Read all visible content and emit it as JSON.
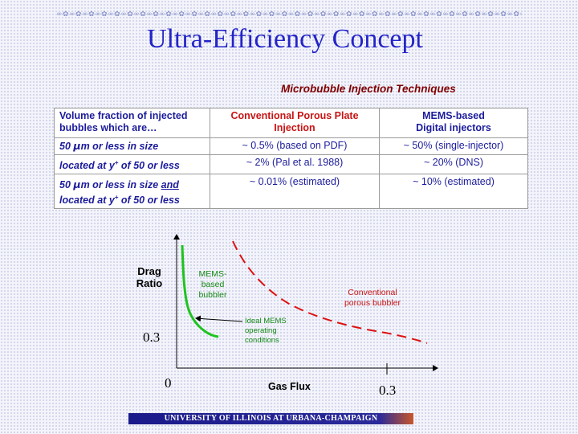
{
  "header": {
    "decoration": "∞✿∞✿∞✿∞✿∞✿∞✿∞✿∞✿∞✿∞✿∞✿∞✿∞✿∞✿∞✿∞✿∞✿∞✿∞✿∞✿∞✿∞✿∞✿∞✿∞✿∞✿∞✿∞✿∞✿∞✿∞✿∞✿∞✿∞✿∞✿∞✿∞✿∞✿∞✿∞✿∞✿∞✿∞✿∞✿",
    "title": "Ultra-Efficiency Concept",
    "subtitle": "Microbubble Injection Techniques"
  },
  "table": {
    "header": {
      "left_line1": "Volume fraction of injected",
      "left_line2": "bubbles which are…",
      "conv_line1": "Conventional Porous Plate",
      "conv_line2": "Injection",
      "mems_line1": "MEMS-based",
      "mems_line2": "Digital injectors"
    },
    "rows": [
      {
        "label_a": "50 ",
        "label_mu": "μ",
        "label_b": "m or less in size",
        "conv": "~ 0.5% (based on PDF)",
        "mems": "~ 50% (single-injector)"
      },
      {
        "label_a": "located at y",
        "label_sup": "+",
        "label_b": " of 50 or less",
        "conv": "~ 2% (Pal et al. 1988)",
        "mems": "~ 20% (DNS)"
      },
      {
        "label_a": "50 ",
        "label_mu": "μ",
        "label_b": "m or less in size ",
        "label_u": "and",
        "label_line2a": "located at y",
        "label_sup": "+",
        "label_line2b": " of 50 or less",
        "conv": "~ 0.01% (estimated)",
        "mems": "~ 10% (estimated)"
      }
    ]
  },
  "figure": {
    "ylabel_line1": "Drag",
    "ylabel_line2": "Ratio",
    "xlabel": "Gas Flux",
    "y_tick": "0.3",
    "origin_label": "0",
    "x_tick": "0.3",
    "mems_label_line1": "MEMS-",
    "mems_label_line2": "based",
    "mems_label_line3": "bubbler",
    "conv_label_line1": "Conventional",
    "conv_label_line2": "porous bubbler",
    "ideal_line1": "Ideal MEMS",
    "ideal_line2": "operating",
    "ideal_line3": "conditions",
    "colors": {
      "mems": "#1fc41f",
      "conv": "#dd1111",
      "axis": "#000000"
    }
  },
  "footer": {
    "text": "UNIVERSITY OF ILLINOIS AT URBANA-CHAMPAIGN"
  }
}
